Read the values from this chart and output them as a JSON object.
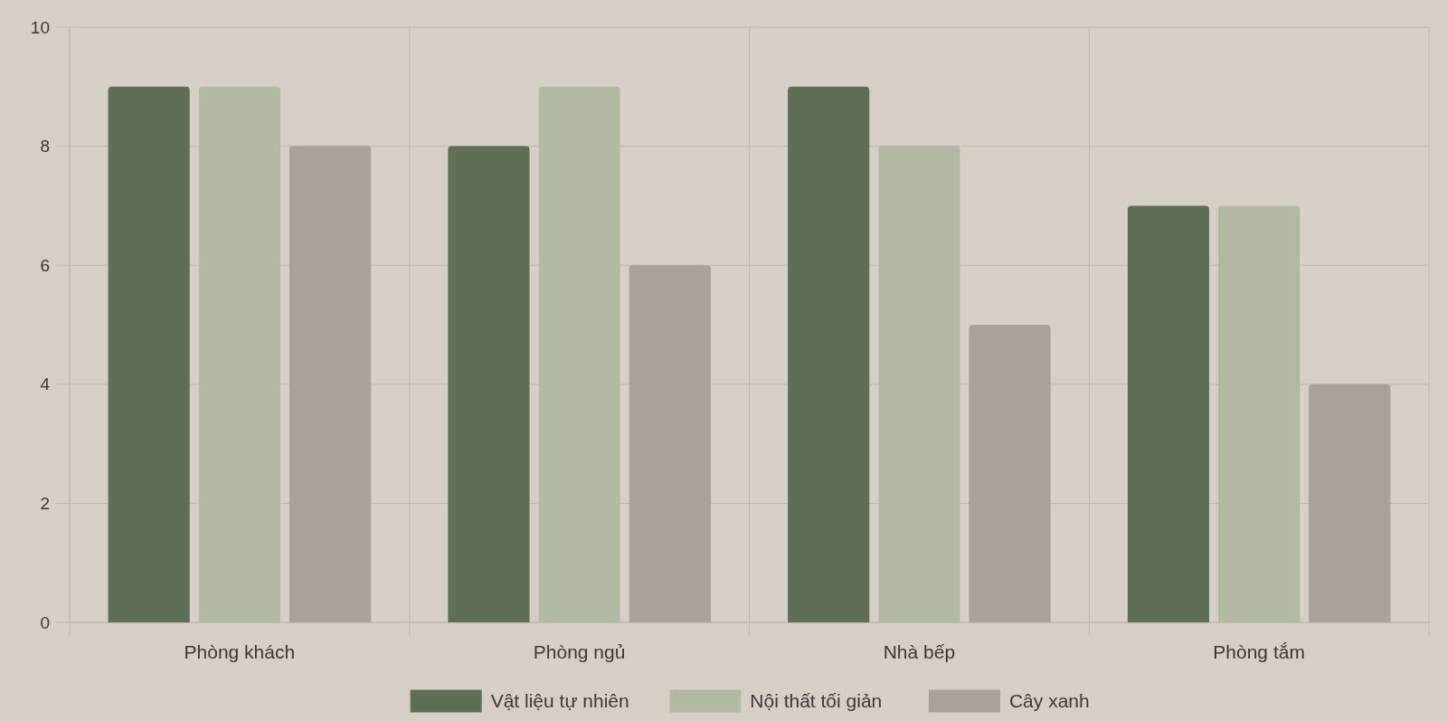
{
  "chart_data": {
    "type": "bar",
    "categories": [
      "Phòng khách",
      "Phòng ngủ",
      "Nhà bếp",
      "Phòng tắm"
    ],
    "series": [
      {
        "name": "Vật liệu tự nhiên",
        "color": "#5f6f55",
        "values": [
          9,
          8,
          9,
          7
        ]
      },
      {
        "name": "Nội thất tối giản",
        "color": "#b3baa4",
        "values": [
          9,
          9,
          8,
          7
        ]
      },
      {
        "name": "Cây xanh",
        "color": "#a8a29b",
        "values": [
          8,
          6,
          5,
          4
        ]
      }
    ],
    "ylim": [
      0,
      10
    ],
    "yticks": [
      0,
      2,
      4,
      6,
      8,
      10
    ],
    "grid": true,
    "legend": "bottom"
  }
}
